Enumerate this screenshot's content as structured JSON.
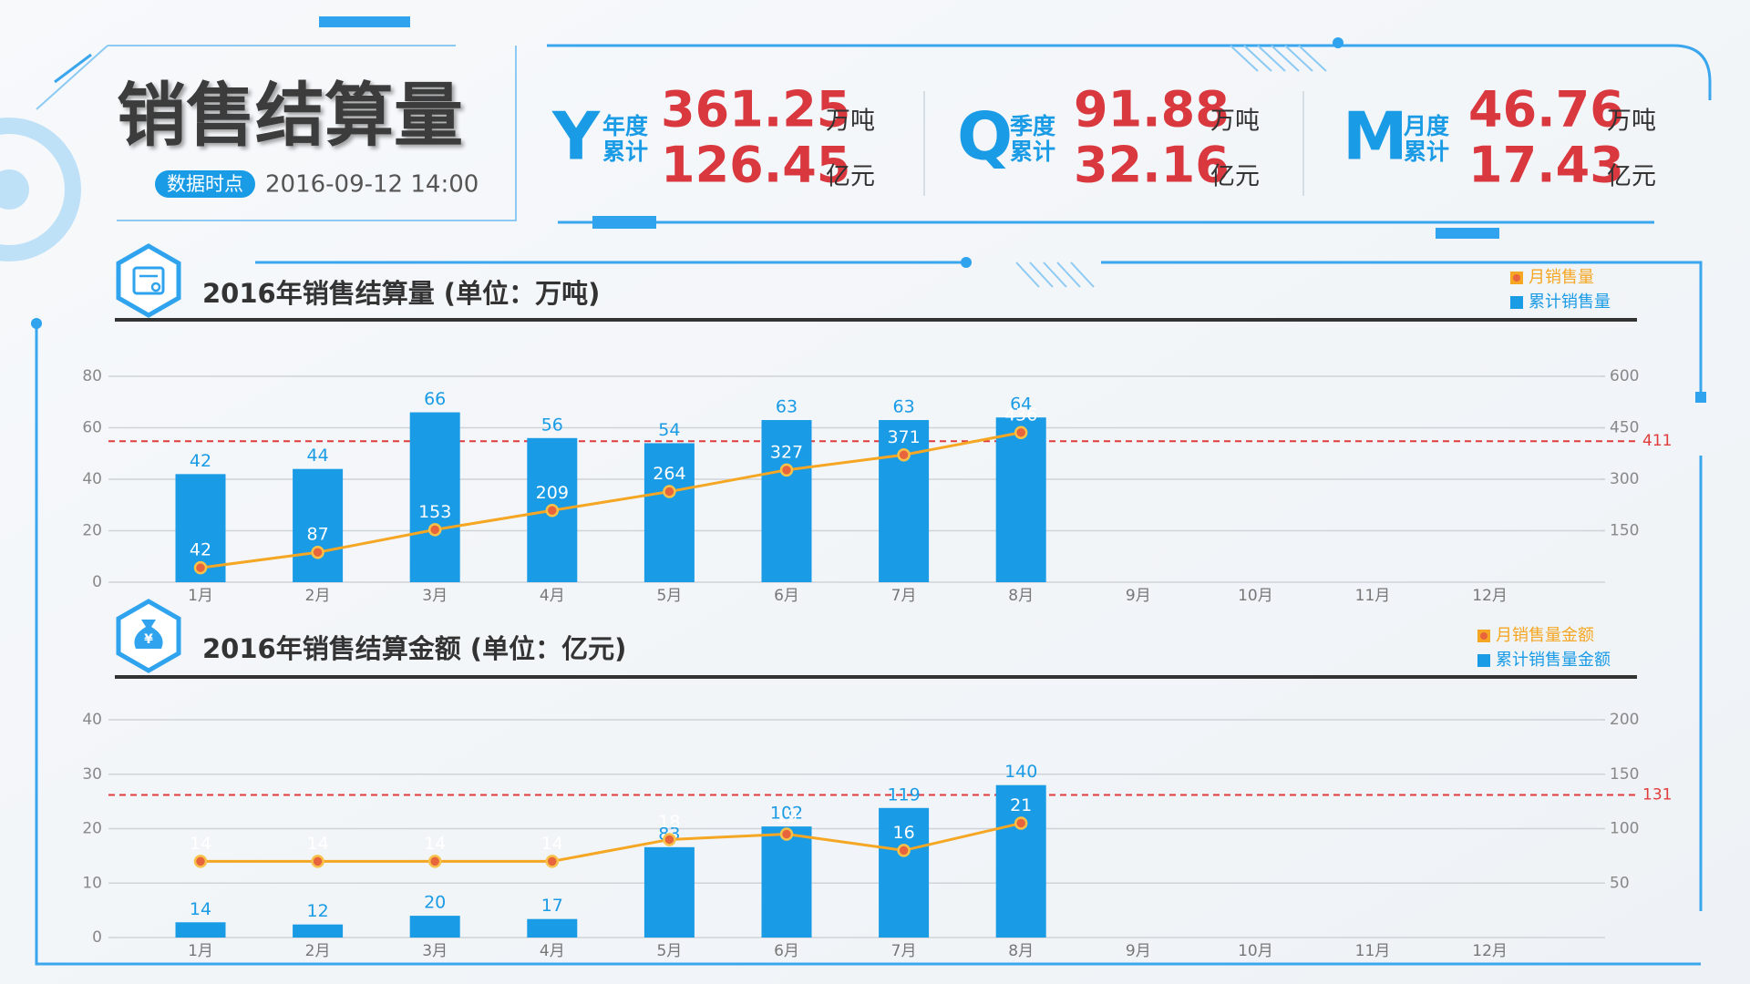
{
  "header": {
    "title": "销售结算量",
    "badge": "数据时点",
    "time": "2016-09-12 14:00"
  },
  "kpis": [
    {
      "letter": "Y",
      "label_top": "年度",
      "label_bottom": "累计",
      "volume": 361.25,
      "volume_unit": "万吨",
      "amount": 126.45,
      "amount_unit": "亿元"
    },
    {
      "letter": "Q",
      "label_top": "季度",
      "label_bottom": "累计",
      "volume": 91.88,
      "volume_unit": "万吨",
      "amount": 32.16,
      "amount_unit": "亿元"
    },
    {
      "letter": "M",
      "label_top": "月度",
      "label_bottom": "累计",
      "volume": 46.76,
      "volume_unit": "万吨",
      "amount": 17.43,
      "amount_unit": "亿元"
    }
  ],
  "chart_data": [
    {
      "type": "bar_line",
      "title": "2016年销售结算量 (单位：万吨)",
      "categories": [
        "1月",
        "2月",
        "3月",
        "4月",
        "5月",
        "6月",
        "7月",
        "8月",
        "9月",
        "10月",
        "11月",
        "12月"
      ],
      "series": [
        {
          "name": "累计销售量",
          "type": "bar",
          "axis": "y",
          "color": "#1a9be6",
          "values": [
            42,
            44,
            66,
            56,
            54,
            63,
            63,
            64,
            null,
            null,
            null,
            null
          ]
        },
        {
          "name": "月销售量",
          "type": "line",
          "axis": "y2",
          "color": "#f5a623",
          "values": [
            42,
            87,
            153,
            209,
            264,
            327,
            371,
            436,
            null,
            null,
            null,
            null
          ]
        }
      ],
      "ylim": [
        0,
        80
      ],
      "yticks": [
        0,
        20,
        40,
        60,
        80
      ],
      "y2lim": [
        0,
        600
      ],
      "y2ticks": [
        150,
        300,
        450,
        600
      ],
      "reference": {
        "value": 411,
        "axis": "y2",
        "color": "#e03c3c"
      },
      "grid": true
    },
    {
      "type": "bar_line",
      "title": "2016年销售结算金额 (单位：亿元)",
      "categories": [
        "1月",
        "2月",
        "3月",
        "4月",
        "5月",
        "6月",
        "7月",
        "8月",
        "9月",
        "10月",
        "11月",
        "12月"
      ],
      "series": [
        {
          "name": "累计销售量金额",
          "type": "bar",
          "axis": "y2",
          "color": "#1a9be6",
          "values": [
            14,
            12,
            20,
            17,
            83,
            102,
            119,
            140,
            null,
            null,
            null,
            null
          ]
        },
        {
          "name": "月销售量金额",
          "type": "line",
          "axis": "y",
          "color": "#f5a623",
          "values": [
            14,
            14,
            14,
            14,
            18,
            19,
            16,
            21,
            null,
            null,
            null,
            null
          ]
        }
      ],
      "ylim": [
        0,
        40
      ],
      "yticks": [
        0,
        10,
        20,
        30,
        40
      ],
      "y2lim": [
        0,
        200
      ],
      "y2ticks": [
        50,
        100,
        150,
        200
      ],
      "reference": {
        "value": 131,
        "axis": "y2",
        "color": "#e03c3c"
      },
      "grid": true
    }
  ]
}
